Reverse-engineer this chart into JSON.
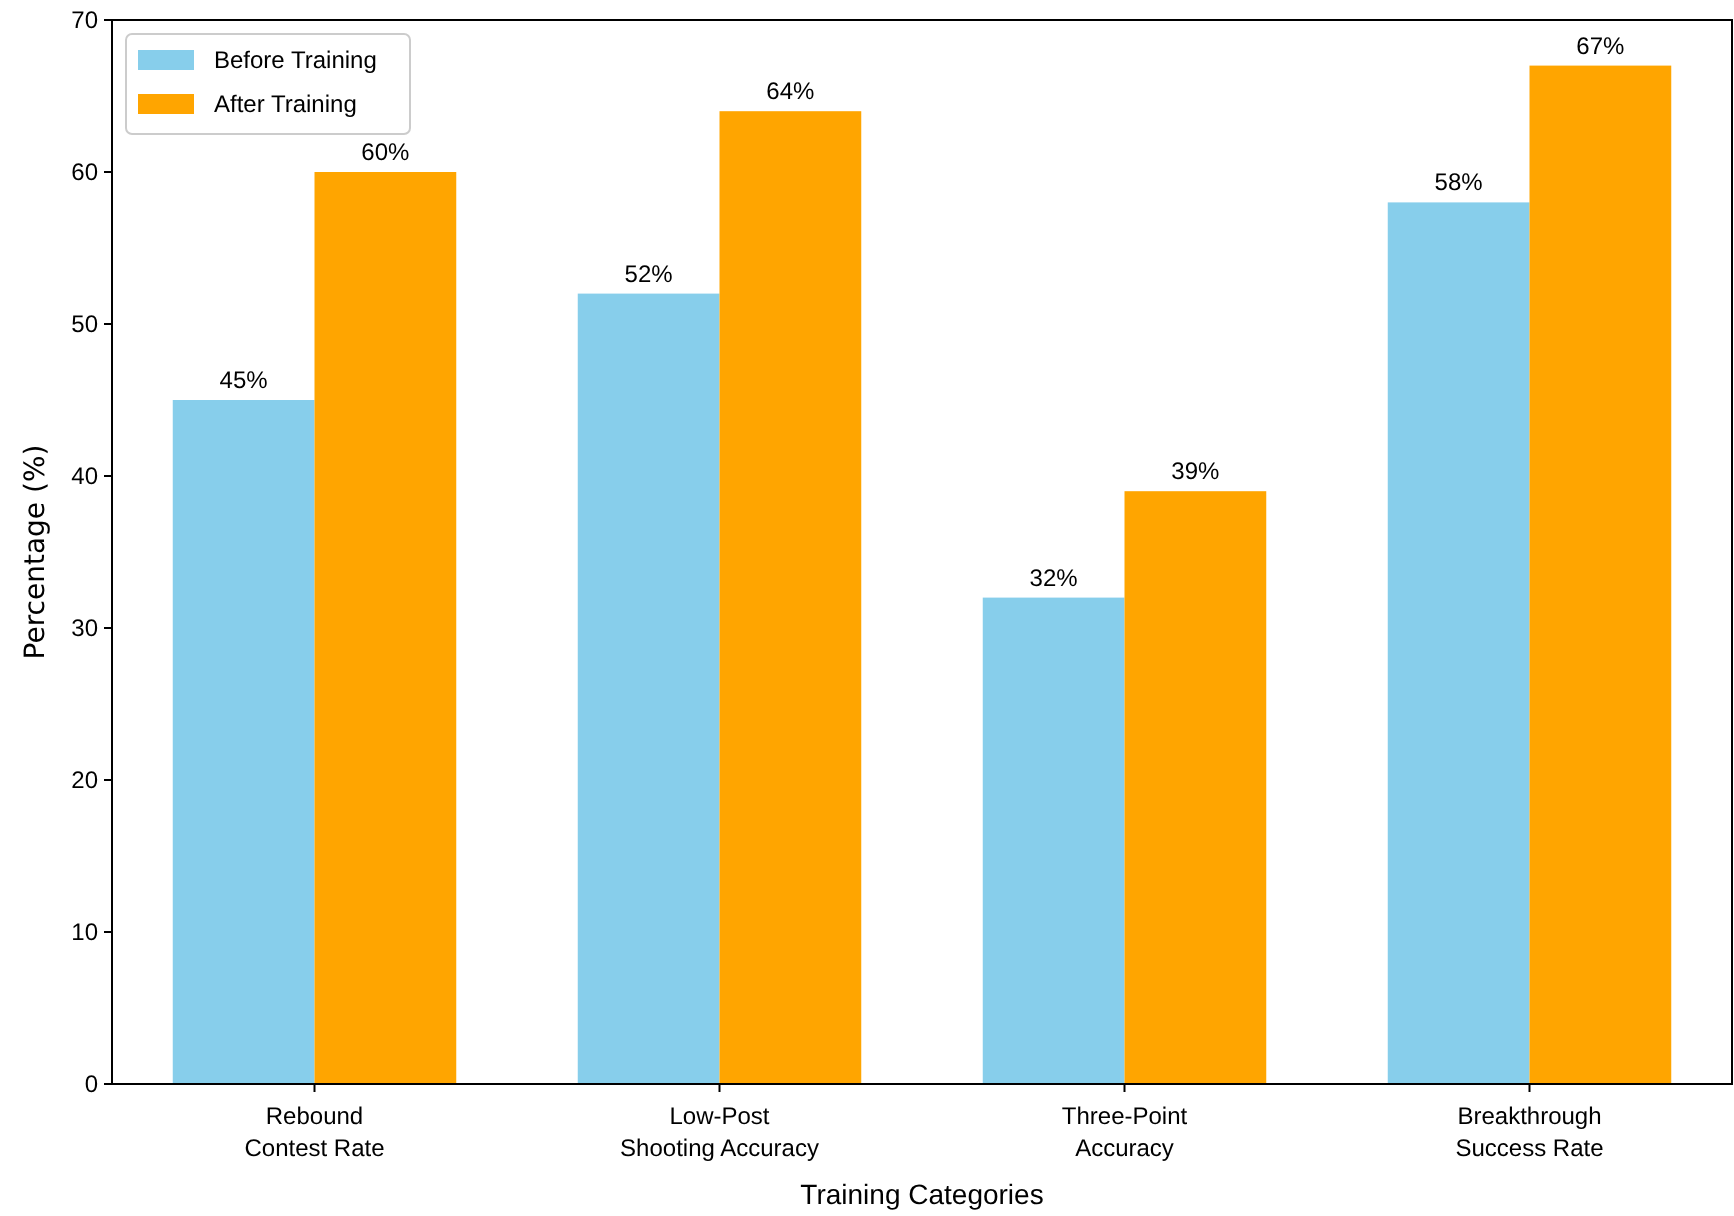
{
  "chart_data": {
    "type": "bar",
    "xlabel": "Training Categories",
    "ylabel": "Percentage (%)",
    "categories": [
      "Rebound\nContest Rate",
      "Low-Post\nShooting Accuracy",
      "Three-Point\nAccuracy",
      "Breakthrough\nSuccess Rate"
    ],
    "series": [
      {
        "name": "Before Training",
        "color": "#87ceeb",
        "values": [
          45,
          52,
          32,
          58
        ],
        "value_labels": [
          "45%",
          "52%",
          "32%",
          "58%"
        ]
      },
      {
        "name": "After Training",
        "color": "#ffa500",
        "values": [
          60,
          64,
          39,
          67
        ],
        "value_labels": [
          "60%",
          "64%",
          "39%",
          "67%"
        ]
      }
    ],
    "ylim": [
      0,
      70
    ],
    "yticks": [
      0,
      10,
      20,
      30,
      40,
      50,
      60,
      70
    ],
    "grid": false,
    "legend": "top left"
  }
}
